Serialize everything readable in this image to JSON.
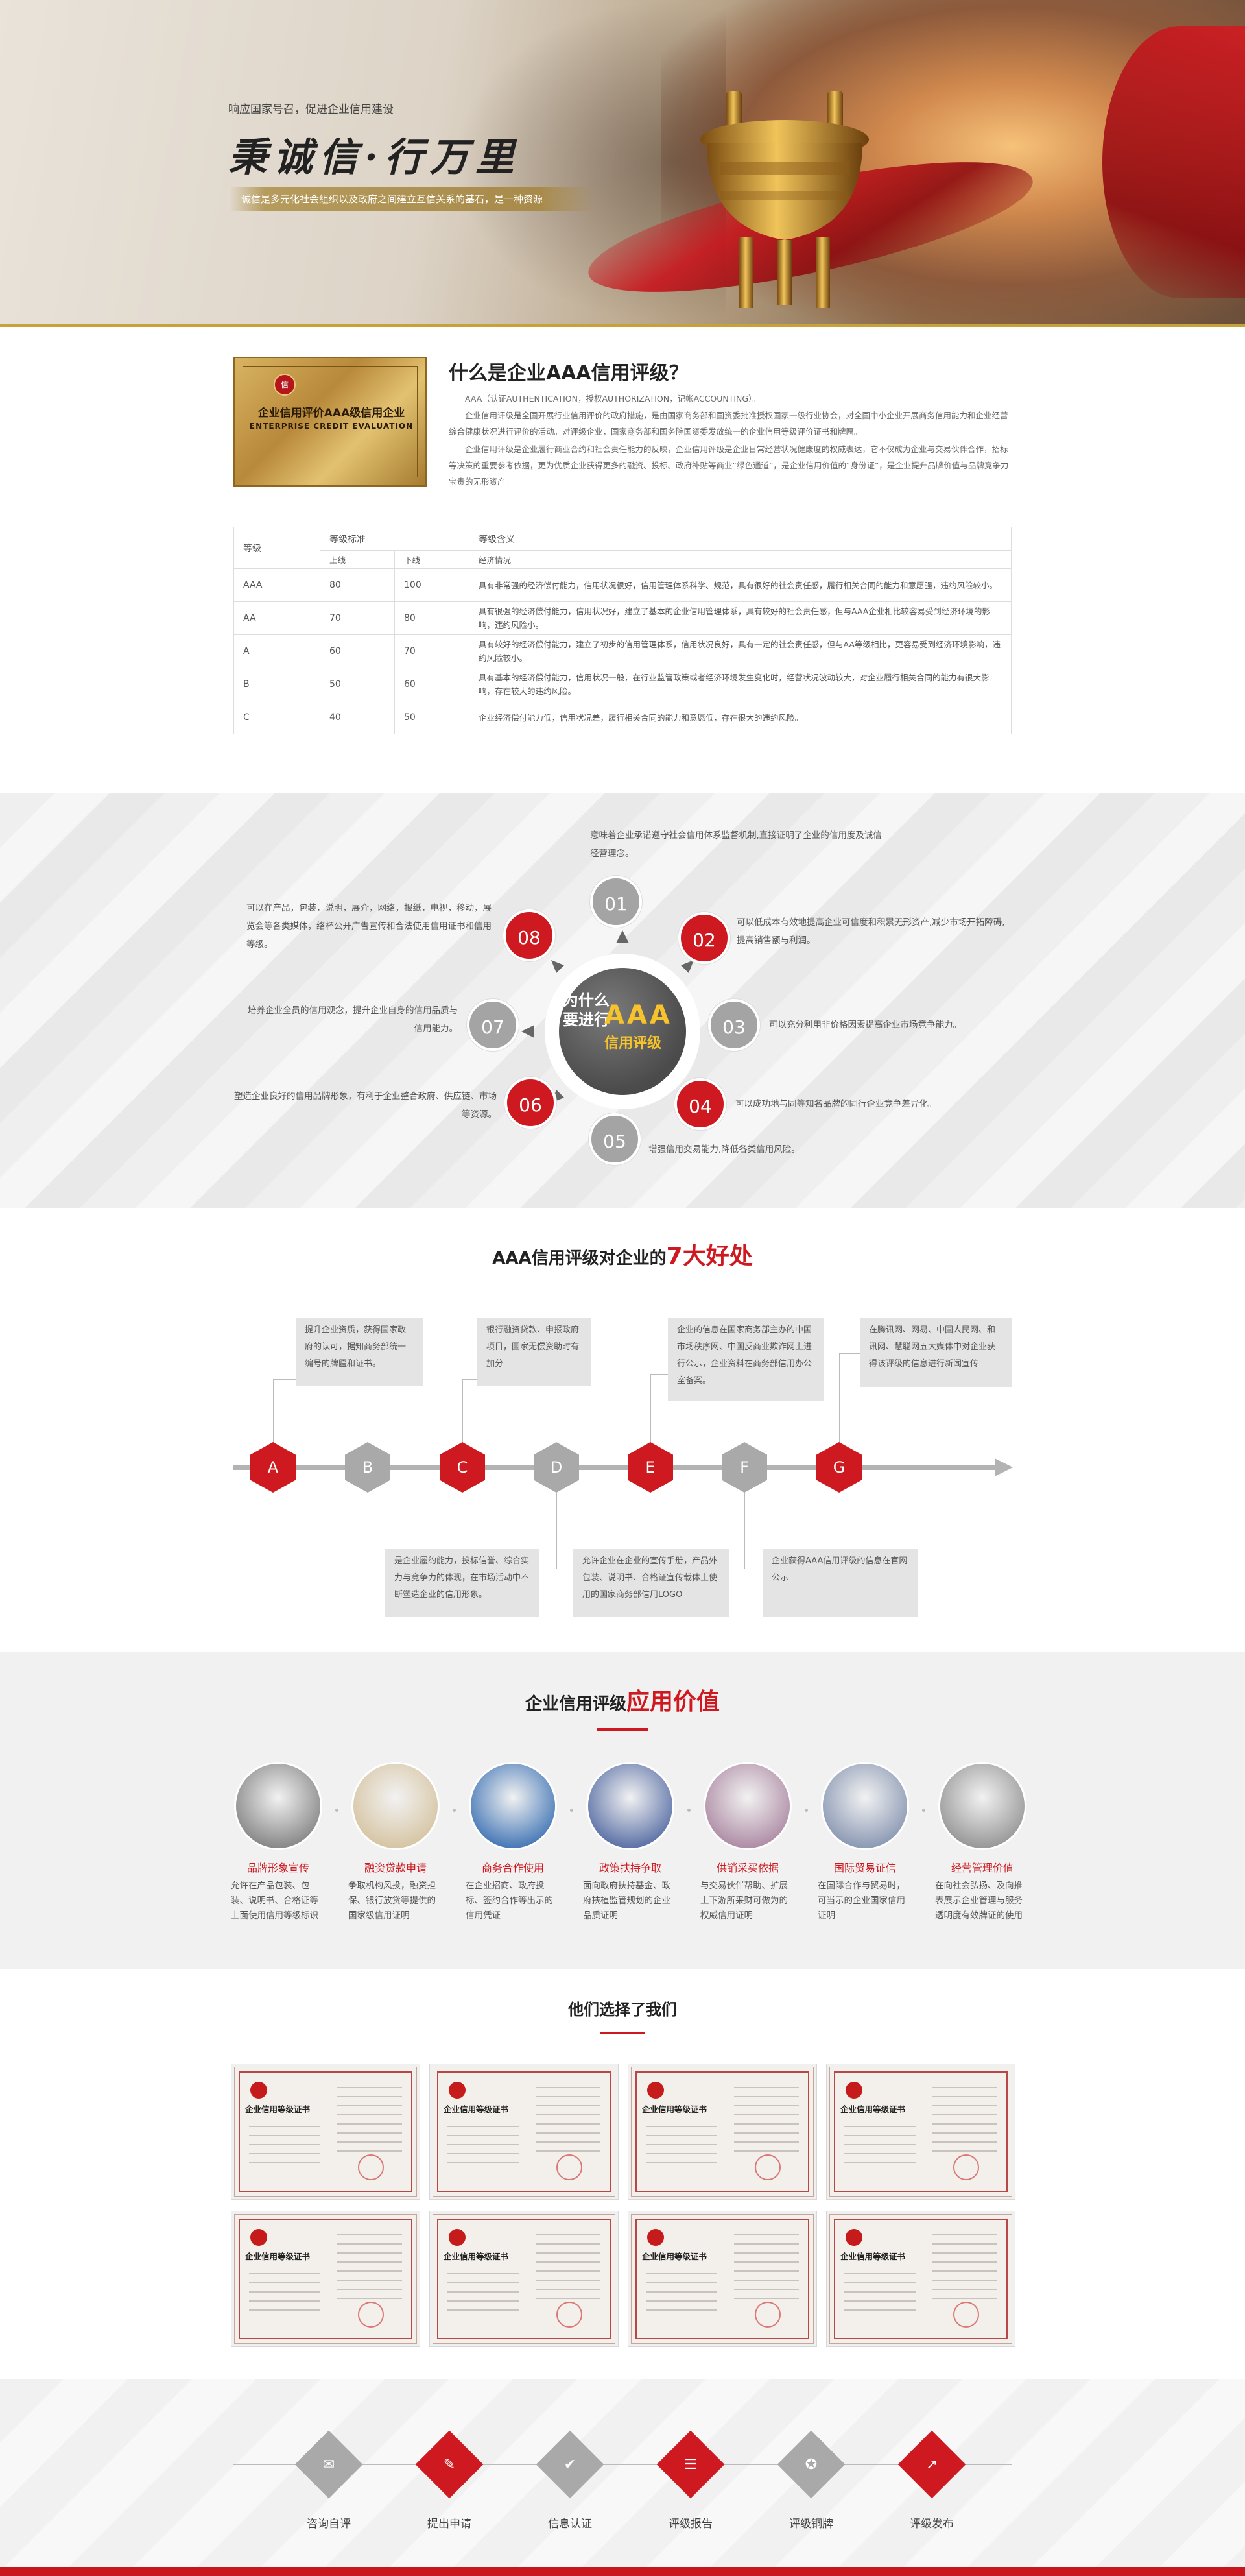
{
  "hero": {
    "slogan_small": "响应国家号召，促进企业信用建设",
    "slogan_big": "秉诚信·行万里",
    "slogan_bar": "诚信是多元化社会组织以及政府之间建立互信关系的基石，是一种资源"
  },
  "intro": {
    "plaque_seal": "信",
    "plaque_line1": "企业信用评价AAA级信用企业",
    "plaque_line2": "ENTERPRISE CREDIT EVALUATION",
    "title": "什么是企业AAA信用评级？",
    "p1": "AAA（认证AUTHENTICATION，授权AUTHORIZATION，记帐ACCOUNTING）。",
    "p2": "企业信用评级是全国开展行业信用评价的政府措施，是由国家商务部和国资委批准授权国家一级行业协会，对全国中小企业开展商务信用能力和企业经营综合健康状况进行评价的活动。对评级企业，国家商务部和国务院国资委发放统一的企业信用等级评价证书和牌匾。",
    "p3": "企业信用评级是企业履行商业合约和社会责任能力的反映，企业信用评级是企业日常经营状况健康度的权威表达，它不仅成为企业与交易伙伴合作，招标等决策的重要参考依据，更为优质企业获得更多的融资、投标、政府补贴等商业“绿色通道”，是企业信用价值的“身份证”，是企业提升品牌价值与品牌竞争力宝贵的无形资产。"
  },
  "table": {
    "h_grade": "等级",
    "h_standard": "等级标准",
    "h_meaning": "等级含义",
    "h_upper": "上线",
    "h_lower": "下线",
    "h_economy": "经济情况",
    "rows": [
      {
        "grade": "AAA",
        "upper": "80",
        "lower": "100",
        "desc": "具有非常强的经济偿付能力，信用状况很好，信用管理体系科学、规范，具有很好的社会责任感，履行相关合同的能力和意愿强，违约风险较小。"
      },
      {
        "grade": "AA",
        "upper": "70",
        "lower": "80",
        "desc": "具有很强的经济偿付能力，信用状况好，建立了基本的企业信用管理体系，具有较好的社会责任感，但与AAA企业相比较容易受到经济环境的影响，违约风险小。"
      },
      {
        "grade": "A",
        "upper": "60",
        "lower": "70",
        "desc": "具有较好的经济偿付能力，建立了初步的信用管理体系，信用状况良好，具有一定的社会责任感，但与AA等级相比，更容易受到经济环境影响，违约风险较小。"
      },
      {
        "grade": "B",
        "upper": "50",
        "lower": "60",
        "desc": "具有基本的经济偿付能力，信用状况一般，在行业监管政策或者经济环境发生变化时，经营状况波动较大，对企业履行相关合同的能力有很大影响，存在较大的违约风险。"
      },
      {
        "grade": "C",
        "upper": "40",
        "lower": "50",
        "desc": "企业经济偿付能力低，信用状况差，履行相关合同的能力和意愿低，存在很大的违约风险。"
      }
    ]
  },
  "why": {
    "center_line1": "为什么",
    "center_line2": "要进行",
    "center_aaa": "AAA",
    "center_line3": "信用评级",
    "items": [
      {
        "num": "01",
        "text": "意味着企业承诺遵守社会信用体系监督机制,直接证明了企业的信用度及诚信经营理念。"
      },
      {
        "num": "02",
        "text": "可以低成本有效地提高企业可信度和积累无形资产,减少市场开拓障碍,提高销售额与利润。"
      },
      {
        "num": "03",
        "text": "可以充分利用非价格因素提高企业市场竞争能力。"
      },
      {
        "num": "04",
        "text": "可以成功地与同等知名品牌的同行企业竞争差异化。"
      },
      {
        "num": "05",
        "text": "增强信用交易能力,降低各类信用风险。"
      },
      {
        "num": "06",
        "text": "塑造企业良好的信用品牌形象，有利于企业整合政府、供应链、市场等资源。"
      },
      {
        "num": "07",
        "text": "培养企业全员的信用观念，提升企业自身的信用品质与信用能力。"
      },
      {
        "num": "08",
        "text": "可以在产品，包装，说明，展介，网络，报纸，电视，移动，展览会等各类媒体，络杯公开广告宣传和合法使用信用证书和信用等级。"
      }
    ]
  },
  "benefits": {
    "title_prefix": "AAA信用评级对企业的",
    "title_red": "7大好处",
    "letters": [
      "A",
      "B",
      "C",
      "D",
      "E",
      "F",
      "G"
    ],
    "boxes": {
      "A": "提升企业资质，获得国家政府的认可，据知商务部统一编号的牌匾和证书。",
      "B": "是企业履约能力，投标信誉、综合实力与竞争力的体现，在市场活动中不断塑造企业的信用形象。",
      "C": "银行融资贷款、申报政府项目，国家无偿资助时有加分",
      "D": "允许企业在企业的宣传手册，产品外包装、说明书、合格证宣传载体上使用的国家商务部信用LOGO",
      "E": "企业的信息在国家商务部主办的中国市场秩序网、中国反商业欺诈网上进行公示，企业资料在商务部信用办公室备案。",
      "F": "企业获得AAA信用评级的信息在官网公示",
      "G": "在腾讯网、网易、中国人民网、和讯网、慧聪网五大媒体中对企业获得该评级的信息进行新闻宣传"
    }
  },
  "value": {
    "title_prefix": "企业信用评级",
    "title_red": "应用价值",
    "items": [
      {
        "title": "品牌形象宣传",
        "desc": "允许在产品包装、包装、说明书、合格证等上面使用信用等级标识的",
        "bg": "#8a8a8a"
      },
      {
        "title": "融资贷款申请",
        "desc": "争取机构风投，融资担保、银行放贷等提供的国家级信用证明",
        "bg": "#d7c6a6"
      },
      {
        "title": "商务合作使用",
        "desc": "在企业招商、政府投标、签约合作等出示的信用凭证",
        "bg": "#4a7bb8"
      },
      {
        "title": "政策扶持争取",
        "desc": "面向政府扶持基金、政府扶植监管规划的企业品质证明",
        "bg": "#5f74a8"
      },
      {
        "title": "供销采买依据",
        "desc": "与交易伙伴帮助、扩展上下游所采财可做为的权威信用证明",
        "bg": "#b08fa7"
      },
      {
        "title": "国际贸易证信",
        "desc": "在国际合作与贸易时，可当示的企业国家信用证明",
        "bg": "#8e9bb5"
      },
      {
        "title": "经营管理价值",
        "desc": "在向社会弘扬、及向推表展示企业管理与服务透明度有效牌证的使用",
        "bg": "#9a9a9a"
      }
    ]
  },
  "clients": {
    "title": "他们选择了我们",
    "cert_title": "企业信用等级证书",
    "count": 8
  },
  "process": {
    "steps": [
      {
        "label": "咨询自评",
        "icon": "chat-icon",
        "glyph": "✉",
        "color": "gray"
      },
      {
        "label": "提出申请",
        "icon": "edit-icon",
        "glyph": "✎",
        "color": "red"
      },
      {
        "label": "信息认证",
        "icon": "shield-check-icon",
        "glyph": "✔",
        "color": "gray"
      },
      {
        "label": "评级报告",
        "icon": "clipboard-icon",
        "glyph": "☰",
        "color": "red"
      },
      {
        "label": "评级铜牌",
        "icon": "medal-icon",
        "glyph": "✪",
        "color": "gray"
      },
      {
        "label": "评级发布",
        "icon": "share-icon",
        "glyph": "↗",
        "color": "red"
      }
    ]
  },
  "colors": {
    "accent": "#cf1920",
    "gold": "#c9a13b",
    "gray": "#a9a9a9"
  }
}
